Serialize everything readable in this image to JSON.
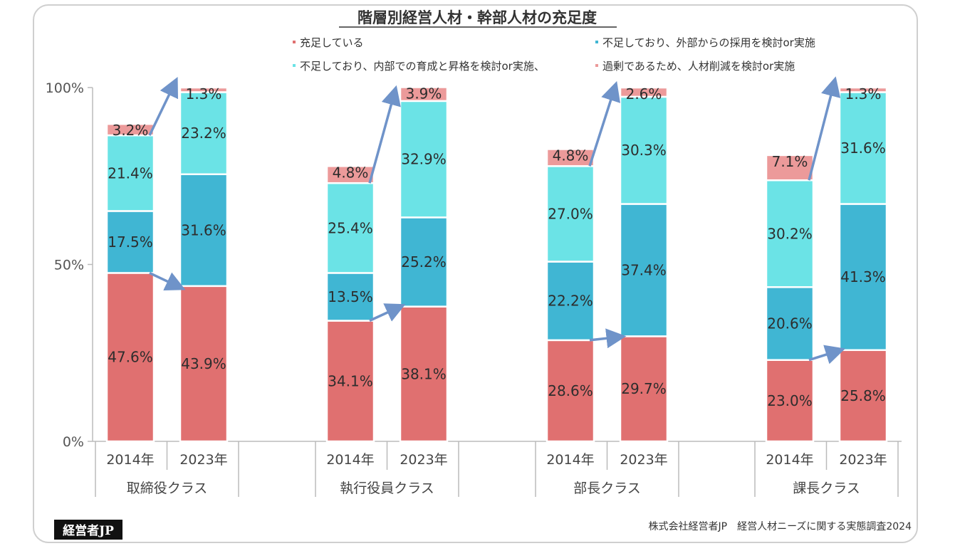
{
  "chart_data": {
    "type": "bar",
    "stacked": true,
    "title": "階層別経営人材・幹部人材の充足度",
    "ylim": [
      0,
      100
    ],
    "yticks": [
      "0%",
      "50%",
      "100%"
    ],
    "groups": [
      "取締役クラス",
      "執行役員クラス",
      "部長クラス",
      "課長クラス"
    ],
    "years": [
      "2014年",
      "2023年"
    ],
    "series": [
      {
        "name": "充足している",
        "color": "#e07070",
        "values": [
          [
            47.6,
            43.9
          ],
          [
            34.1,
            38.1
          ],
          [
            28.6,
            29.7
          ],
          [
            23.0,
            25.8
          ]
        ]
      },
      {
        "name": "不足しており、外部からの採用を検討or実施",
        "color": "#40b6d3",
        "values": [
          [
            17.5,
            31.6
          ],
          [
            13.5,
            25.2
          ],
          [
            22.2,
            37.4
          ],
          [
            20.6,
            41.3
          ]
        ]
      },
      {
        "name": "不足しており、内部での育成と昇格を検討or実施、",
        "color": "#6be3e6",
        "values": [
          [
            21.4,
            23.2
          ],
          [
            25.4,
            32.9
          ],
          [
            27.0,
            30.3
          ],
          [
            30.2,
            31.6
          ]
        ]
      },
      {
        "name": "過剰であるため、人材削減を検討or実施",
        "color": "#ec9a9a",
        "values": [
          [
            3.2,
            1.3
          ],
          [
            4.8,
            3.9
          ],
          [
            4.8,
            2.6
          ],
          [
            7.1,
            1.3
          ]
        ]
      }
    ],
    "labels": [
      [
        [
          "47.6%",
          "43.9%"
        ],
        [
          "34.1%",
          "38.1%"
        ],
        [
          "28.6%",
          "29.7%"
        ],
        [
          "23.0%",
          "25.8%"
        ]
      ],
      [
        [
          "17.5%",
          "31.6%"
        ],
        [
          "13.5%",
          "25.2%"
        ],
        [
          "22.2%",
          "37.4%"
        ],
        [
          "20.6%",
          "41.3%"
        ]
      ],
      [
        [
          "21.4%",
          "23.2%"
        ],
        [
          "25.4%",
          "32.9%"
        ],
        [
          "27.0%",
          "30.3%"
        ],
        [
          "30.2%",
          "31.6%"
        ]
      ],
      [
        [
          "3.2%",
          "1.3%"
        ],
        [
          "4.8%",
          "3.9%"
        ],
        [
          "4.8%",
          "2.6%"
        ],
        [
          "7.1%",
          "1.3%"
        ]
      ]
    ],
    "arrow_color": "#6f93c9",
    "legend_placement": "top"
  },
  "footer": {
    "source": "株式会社経営者JP　経営人材ニーズに関する実態調査2024",
    "logo": "経営者JP"
  }
}
